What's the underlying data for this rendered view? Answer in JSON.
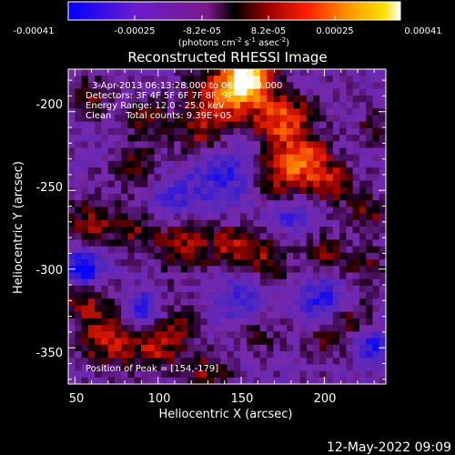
{
  "colorbar": {
    "ticks": [
      "-0.00041",
      "-0.00025",
      "-8.2e-05",
      "8.2e-05",
      "0.00025",
      "0.00041"
    ],
    "units_main": "(photons cm",
    "units_exp1": "-2",
    "units_mid": " s",
    "units_exp2": "-1",
    "units_end": " asec",
    "units_exp3": "-2",
    "units_close": ")"
  },
  "plot": {
    "title": "Reconstructed RHESSI Image",
    "xlabel": "Heliocentric X (arcsec)",
    "ylabel": "Heliocentric Y (arcsec)",
    "x_ticks": [
      "50",
      "100",
      "150",
      "200"
    ],
    "y_ticks": [
      "-200",
      "-250",
      "-300",
      "-350"
    ],
    "x_range": [
      46,
      237
    ],
    "y_range": [
      -373,
      -173
    ]
  },
  "annotations": {
    "time_line": "3-Apr-2013 06:13:28.000 to 06:19:28.000",
    "detectors_line": "Detectors: 3F 4F 5F 6F 7F 8F, 9F",
    "energy_line": "Energy Range: 12.0 - 25.0 keV",
    "clean_line": "Clean     Total counts: 9.39E+05",
    "peak_line": "Position of Peak = [154,-179]"
  },
  "footer": {
    "date": "12-May-2022 09:09"
  },
  "chart_data": {
    "type": "heatmap",
    "title": "Reconstructed RHESSI Image",
    "xlabel": "Heliocentric X (arcsec)",
    "ylabel": "Heliocentric Y (arcsec)",
    "xlim": [
      46,
      237
    ],
    "ylim": [
      -373,
      -173
    ],
    "colorbar_range": [
      -0.00041,
      0.00041
    ],
    "peak": [
      154,
      -179
    ],
    "colormap": [
      "#0000ff",
      "#5a2cc4",
      "#8a2be2",
      "#000000",
      "#b00000",
      "#ff3000",
      "#ff9000",
      "#ffd000",
      "#ffffff"
    ]
  }
}
